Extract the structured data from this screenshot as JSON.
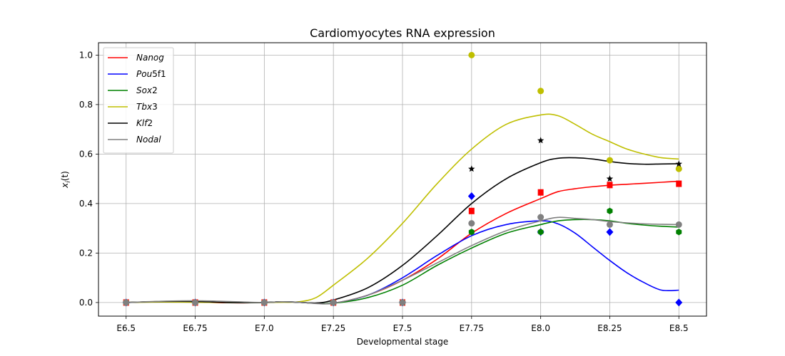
{
  "chart_data": {
    "type": "line",
    "title": "Cardiomyocytes RNA expression",
    "xlabel": "Developmental stage",
    "ylabel": "x_i(t)",
    "ylabel_main": "x",
    "ylabel_sub": "i",
    "ylabel_paren": "(t)",
    "categories": [
      "E6.5",
      "E6.75",
      "E7.0",
      "E7.25",
      "E7.5",
      "E7.75",
      "E8.0",
      "E8.25",
      "E8.5"
    ],
    "x": [
      0,
      1,
      2,
      3,
      4,
      5,
      6,
      7,
      8
    ],
    "xlim": [
      -0.4,
      8.4
    ],
    "ylim": [
      -0.055,
      1.05
    ],
    "yticks": [
      0.0,
      0.2,
      0.4,
      0.6,
      0.8,
      1.0
    ],
    "ytick_labels": [
      "0.0",
      "0.2",
      "0.4",
      "0.6",
      "0.8",
      "1.0"
    ],
    "grid": true,
    "legend_position": "top-left",
    "series": [
      {
        "name": "Nanog",
        "name_italic": "Nanog",
        "name_num": "",
        "color": "#ff0000",
        "marker": "square",
        "points": [
          0,
          0,
          0,
          0,
          0,
          0.37,
          0.445,
          0.475,
          0.48
        ],
        "curve": [
          0,
          0.004,
          0.002,
          -0.001,
          0,
          0.003,
          0.001,
          -0.003,
          -0.003,
          0.03,
          0.09,
          0.175,
          0.28,
          0.36,
          0.42,
          0.448,
          0.46,
          0.468,
          0.474,
          0.478,
          0.482,
          0.486,
          0.49
        ]
      },
      {
        "name": "Pou5f1",
        "name_italic": "Pou",
        "name_num": "5f1",
        "color": "#0000ff",
        "marker": "diamond",
        "points": [
          0,
          0,
          0,
          0,
          0,
          0.43,
          0.285,
          0.285,
          0.0
        ],
        "curve": [
          0,
          0.003,
          0.003,
          0,
          0,
          0.003,
          0.001,
          -0.003,
          -0.003,
          0.03,
          0.1,
          0.19,
          0.27,
          0.315,
          0.33,
          0.318,
          0.28,
          0.225,
          0.17,
          0.12,
          0.08,
          0.05,
          0.05
        ]
      },
      {
        "name": "Sox2",
        "name_italic": "Sox",
        "name_num": "2",
        "color": "#008000",
        "marker": "hexagon",
        "points": [
          0,
          0,
          0,
          0,
          0,
          0.285,
          0.285,
          0.37,
          0.285
        ],
        "curve": [
          0,
          0.004,
          0.003,
          0,
          0,
          0.003,
          0.001,
          -0.003,
          -0.003,
          0.02,
          0.07,
          0.15,
          0.22,
          0.28,
          0.315,
          0.33,
          0.335,
          0.335,
          0.33,
          0.32,
          0.313,
          0.308,
          0.305
        ]
      },
      {
        "name": "Tbx3",
        "name_italic": "Tbx",
        "name_num": "3",
        "color": "#bfbf00",
        "marker": "circle",
        "points": [
          0,
          0,
          0,
          0,
          0,
          1.0,
          0.855,
          0.575,
          0.54
        ],
        "curve": [
          0,
          0.002,
          0.001,
          0,
          0,
          0.001,
          0.003,
          0.02,
          0.07,
          0.18,
          0.32,
          0.48,
          0.62,
          0.72,
          0.758,
          0.755,
          0.72,
          0.68,
          0.65,
          0.62,
          0.6,
          0.585,
          0.58
        ]
      },
      {
        "name": "Klf2",
        "name_italic": "Klf",
        "name_num": "2",
        "color": "#000000",
        "marker": "star",
        "points": [
          0,
          0,
          0,
          0,
          0,
          0.54,
          0.655,
          0.5,
          0.56
        ],
        "curve": [
          0,
          0.004,
          0.004,
          0,
          0,
          0.003,
          0.001,
          -0.002,
          0.01,
          0.06,
          0.15,
          0.27,
          0.4,
          0.5,
          0.565,
          0.583,
          0.585,
          0.58,
          0.57,
          0.562,
          0.559,
          0.56,
          0.561
        ]
      },
      {
        "name": "Nodal",
        "name_italic": "Nodal",
        "name_num": "",
        "color": "#808080",
        "marker": "circle",
        "points": [
          0,
          0,
          0,
          0,
          0,
          0.32,
          0.345,
          0.315,
          0.315
        ],
        "curve": [
          0,
          0.005,
          0.007,
          0.004,
          0,
          0.003,
          0.001,
          -0.004,
          -0.003,
          0.03,
          0.09,
          0.16,
          0.23,
          0.29,
          0.33,
          0.344,
          0.34,
          0.335,
          0.327,
          0.322,
          0.318,
          0.316,
          0.315
        ]
      }
    ],
    "curve_x": [
      0,
      0.5,
      1,
      1.5,
      2,
      2.25,
      2.5,
      2.75,
      3,
      3.5,
      4,
      4.5,
      5,
      5.5,
      6,
      6.25,
      6.5,
      6.75,
      7,
      7.25,
      7.5,
      7.75,
      8
    ]
  }
}
